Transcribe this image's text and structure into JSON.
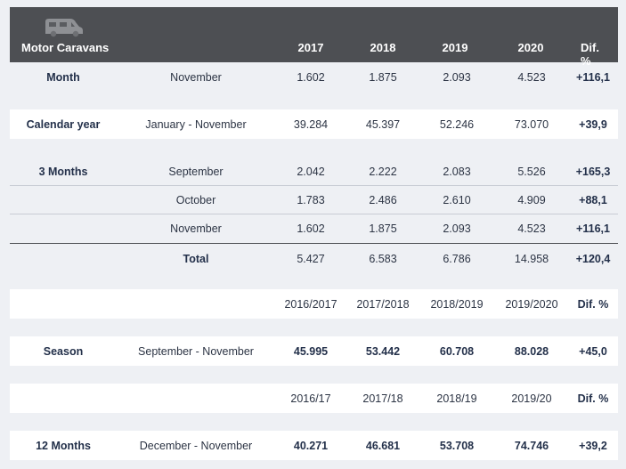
{
  "header": {
    "title": "Motor Caravans",
    "icon": "caravan-icon",
    "years": [
      "2017",
      "2018",
      "2019",
      "2020"
    ],
    "dif": "Dif. %"
  },
  "month": {
    "label": "Month",
    "period": "November",
    "values": [
      "1.602",
      "1.875",
      "2.093",
      "4.523"
    ],
    "dif": "+116,1"
  },
  "calendar_year": {
    "label": "Calendar year",
    "period": "January - November",
    "values": [
      "39.284",
      "45.397",
      "52.246",
      "73.070"
    ],
    "dif": "+39,9"
  },
  "three_months": {
    "label": "3 Months",
    "rows": [
      {
        "period": "September",
        "values": [
          "2.042",
          "2.222",
          "2.083",
          "5.526"
        ],
        "dif": "+165,3"
      },
      {
        "period": "October",
        "values": [
          "1.783",
          "2.486",
          "2.610",
          "4.909"
        ],
        "dif": "+88,1"
      },
      {
        "period": "November",
        "values": [
          "1.602",
          "1.875",
          "2.093",
          "4.523"
        ],
        "dif": "+116,1"
      }
    ],
    "total": {
      "label": "Total",
      "values": [
        "5.427",
        "6.583",
        "6.786",
        "14.958"
      ],
      "dif": "+120,4"
    }
  },
  "season_header": {
    "periods": [
      "2016/2017",
      "2017/2018",
      "2018/2019",
      "2019/2020"
    ],
    "dif": "Dif. %"
  },
  "season": {
    "label": "Season",
    "period": "September - November",
    "values": [
      "45.995",
      "53.442",
      "60.708",
      "88.028"
    ],
    "dif": "+45,0"
  },
  "twelve_header": {
    "periods": [
      "2016/17",
      "2017/18",
      "2018/19",
      "2019/20"
    ],
    "dif": "Dif. %"
  },
  "twelve_months": {
    "label": "12 Months",
    "period": "December - November",
    "values": [
      "40.271",
      "46.681",
      "53.708",
      "74.746"
    ],
    "dif": "+39,2"
  }
}
